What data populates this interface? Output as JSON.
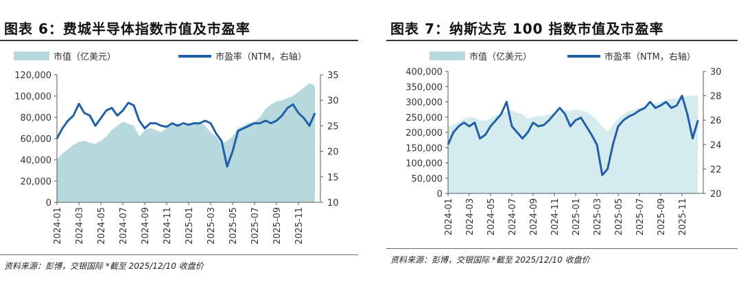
{
  "charts": [
    {
      "title": "图表 6：费城半导体指数市值及市盈率",
      "source": "资料来源：彭博，交银国际   *截至 2025/12/10 收盘价",
      "legend": {
        "area": "市值（亿美元）",
        "line": "市盈率（NTM，右轴）"
      }
    },
    {
      "title": "图表 7：纳斯达克 100 指数市值及市盈率",
      "source": "资料来源：彭博，交银国际   *截至 2025/12/10 收盘价",
      "legend": {
        "area": "市值（亿美元）",
        "line": "市盈率（NTM，右轴）"
      }
    }
  ],
  "colors": {
    "area": "#b7d9de",
    "area_light": "#d5ebee",
    "line": "#1f5fa8",
    "axis": "#555555"
  },
  "chart_data": [
    {
      "type": "area+line",
      "title": "图表 6：费城半导体指数市值及市盈率",
      "x_ticks": [
        "2024-01",
        "2024-03",
        "2024-05",
        "2024-07",
        "2024-09",
        "2024-11",
        "2025-01",
        "2025-03",
        "2025-05",
        "2025-07",
        "2025-09",
        "2025-11"
      ],
      "y_left": {
        "min": 0,
        "max": 120000,
        "ticks": [
          "0",
          "20,000",
          "40,000",
          "60,000",
          "80,000",
          "100,000",
          "120,000"
        ]
      },
      "y_right": {
        "min": 10,
        "max": 35,
        "ticks": [
          "10",
          "15",
          "20",
          "25",
          "30",
          "35"
        ]
      },
      "series": [
        {
          "name": "市值（亿美元）",
          "axis": "left",
          "type": "area",
          "x": [
            0,
            0.5,
            1,
            1.5,
            2,
            2.5,
            3,
            3.5,
            4,
            4.5,
            5,
            5.5,
            6,
            6.5,
            7,
            7.5,
            8,
            8.5,
            9,
            9.5,
            10,
            10.5,
            11,
            11.5,
            12,
            12.5,
            13,
            13.5,
            14,
            14.5,
            15,
            15.5,
            16,
            16.5,
            17,
            17.5,
            18,
            18.5,
            19,
            19.5,
            20,
            20.5,
            21,
            21.5,
            22,
            22.5,
            23,
            23.5
          ],
          "values": [
            40000,
            46000,
            50000,
            54000,
            57000,
            58000,
            56000,
            55000,
            58000,
            62000,
            68000,
            72000,
            76000,
            74000,
            72000,
            62000,
            68000,
            70000,
            68000,
            66000,
            70000,
            73000,
            74000,
            72000,
            74000,
            73000,
            76000,
            72000,
            66000,
            62000,
            55000,
            58000,
            62000,
            70000,
            72000,
            75000,
            76000,
            80000,
            88000,
            92000,
            95000,
            96000,
            98000,
            100000,
            104000,
            108000,
            112000,
            110000
          ]
        },
        {
          "name": "市盈率（NTM，右轴）",
          "axis": "right",
          "type": "line",
          "x": [
            0,
            0.5,
            1,
            1.5,
            2,
            2.5,
            3,
            3.5,
            4,
            4.5,
            5,
            5.5,
            6,
            6.5,
            7,
            7.5,
            8,
            8.5,
            9,
            9.5,
            10,
            10.5,
            11,
            11.5,
            12,
            12.5,
            13,
            13.5,
            14,
            14.5,
            15,
            15.5,
            16,
            16.5,
            17,
            17.5,
            18,
            18.5,
            19,
            19.5,
            20,
            20.5,
            21,
            21.5,
            22,
            22.5,
            23,
            23.5
          ],
          "values": [
            22.5,
            24.5,
            26,
            27,
            29.3,
            27.5,
            27,
            25,
            26.5,
            28,
            28.5,
            27,
            28,
            29.5,
            29,
            26,
            24.5,
            25.5,
            25.5,
            25,
            24.8,
            25.5,
            25,
            25.5,
            25.2,
            25.5,
            25.5,
            26,
            25.5,
            23.5,
            22,
            17,
            20,
            24,
            24.5,
            25,
            25.5,
            25.5,
            26,
            25.5,
            26,
            27,
            28.5,
            29.2,
            27.5,
            26.5,
            25,
            27.5
          ]
        }
      ]
    },
    {
      "type": "area+line",
      "title": "图表 7：纳斯达克 100 指数市值及市盈率",
      "x_ticks": [
        "2024-01",
        "2024-03",
        "2024-05",
        "2024-07",
        "2024-09",
        "2024-11",
        "2025-01",
        "2025-03",
        "2025-05",
        "2025-07",
        "2025-09",
        "2025-11"
      ],
      "y_left": {
        "min": 0,
        "max": 400000,
        "ticks": [
          "0",
          "50,000",
          "100,000",
          "150,000",
          "200,000",
          "250,000",
          "300,000",
          "350,000",
          "400,000"
        ]
      },
      "y_right": {
        "min": 20,
        "max": 30,
        "ticks": [
          "20",
          "22",
          "24",
          "26",
          "28",
          "30"
        ]
      },
      "series": [
        {
          "name": "市值（亿美元）",
          "axis": "left",
          "type": "area",
          "x": [
            0,
            0.5,
            1,
            1.5,
            2,
            2.5,
            3,
            3.5,
            4,
            4.5,
            5,
            5.5,
            6,
            6.5,
            7,
            7.5,
            8,
            8.5,
            9,
            9.5,
            10,
            10.5,
            11,
            11.5,
            12,
            12.5,
            13,
            13.5,
            14,
            14.5,
            15,
            15.5,
            16,
            16.5,
            17,
            17.5,
            18,
            18.5,
            19,
            19.5,
            20,
            20.5,
            21,
            21.5,
            22,
            22.5,
            23,
            23.5
          ],
          "values": [
            220000,
            225000,
            235000,
            245000,
            250000,
            248000,
            240000,
            238000,
            245000,
            255000,
            262000,
            268000,
            272000,
            265000,
            260000,
            245000,
            250000,
            255000,
            255000,
            260000,
            262000,
            268000,
            272000,
            270000,
            275000,
            272000,
            268000,
            255000,
            240000,
            220000,
            200000,
            225000,
            245000,
            260000,
            270000,
            275000,
            280000,
            285000,
            290000,
            295000,
            300000,
            305000,
            310000,
            312000,
            315000,
            318000,
            322000,
            320000
          ]
        },
        {
          "name": "市盈率（NTM，右轴）",
          "axis": "right",
          "type": "line",
          "x": [
            0,
            0.5,
            1,
            1.5,
            2,
            2.5,
            3,
            3.5,
            4,
            4.5,
            5,
            5.5,
            6,
            6.5,
            7,
            7.5,
            8,
            8.5,
            9,
            9.5,
            10,
            10.5,
            11,
            11.5,
            12,
            12.5,
            13,
            13.5,
            14,
            14.5,
            15,
            15.5,
            16,
            16.5,
            17,
            17.5,
            18,
            18.5,
            19,
            19.5,
            20,
            20.5,
            21,
            21.5,
            22,
            22.5,
            23,
            23.5
          ],
          "values": [
            24,
            25,
            25.5,
            25.8,
            25.5,
            25.8,
            24.5,
            24.8,
            25.5,
            26,
            26.5,
            27.5,
            25.5,
            25,
            24.5,
            25,
            25.8,
            25.5,
            25.6,
            26,
            26.5,
            27,
            26.5,
            25.5,
            26,
            26.2,
            25.5,
            24.8,
            24,
            21.5,
            22,
            24,
            25.5,
            26,
            26.3,
            26.5,
            26.8,
            27,
            27.5,
            27,
            27.2,
            27.5,
            27,
            27.2,
            28,
            26.5,
            24.5,
            26
          ]
        }
      ]
    }
  ]
}
